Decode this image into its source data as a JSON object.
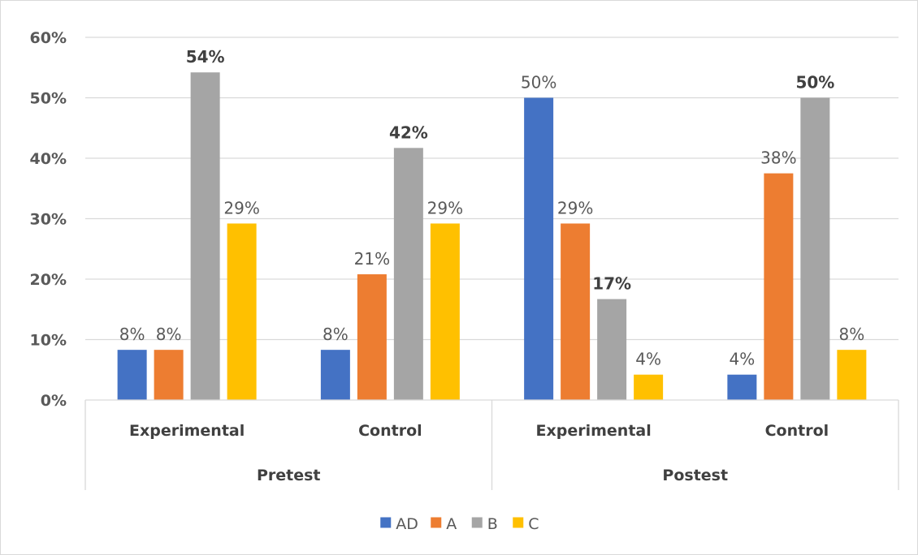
{
  "chart_data": {
    "type": "bar",
    "title": "",
    "xlabel": "",
    "ylabel": "",
    "ylim": [
      0,
      0.6
    ],
    "yticks": [
      "0%",
      "10%",
      "20%",
      "30%",
      "40%",
      "50%",
      "60%"
    ],
    "groups": [
      {
        "label": "Pretest",
        "categories": [
          "Experimental",
          "Control"
        ]
      },
      {
        "label": "Postest",
        "categories": [
          "Experimental",
          "Control"
        ]
      }
    ],
    "categories": [
      "Experimental",
      "Control",
      "Experimental",
      "Control"
    ],
    "series": [
      {
        "name": "AD",
        "color": "#4472c4",
        "values": [
          0.083,
          0.083,
          0.5,
          0.042
        ],
        "labels": [
          "8%",
          "8%",
          "50%",
          "4%"
        ],
        "bold": [
          false,
          false,
          false,
          false
        ]
      },
      {
        "name": "A",
        "color": "#ed7d31",
        "values": [
          0.083,
          0.208,
          0.292,
          0.375
        ],
        "labels": [
          "8%",
          "21%",
          "29%",
          "38%"
        ],
        "bold": [
          false,
          false,
          false,
          false
        ]
      },
      {
        "name": "B",
        "color": "#a5a5a5",
        "values": [
          0.542,
          0.417,
          0.167,
          0.5
        ],
        "labels": [
          "54%",
          "42%",
          "17%",
          "50%"
        ],
        "bold": [
          true,
          true,
          true,
          true
        ]
      },
      {
        "name": "C",
        "color": "#ffc000",
        "values": [
          0.292,
          0.292,
          0.042,
          0.083
        ],
        "labels": [
          "29%",
          "29%",
          "4%",
          "8%"
        ],
        "bold": [
          false,
          false,
          false,
          false
        ]
      }
    ],
    "grid": true,
    "legend": "bottom"
  }
}
